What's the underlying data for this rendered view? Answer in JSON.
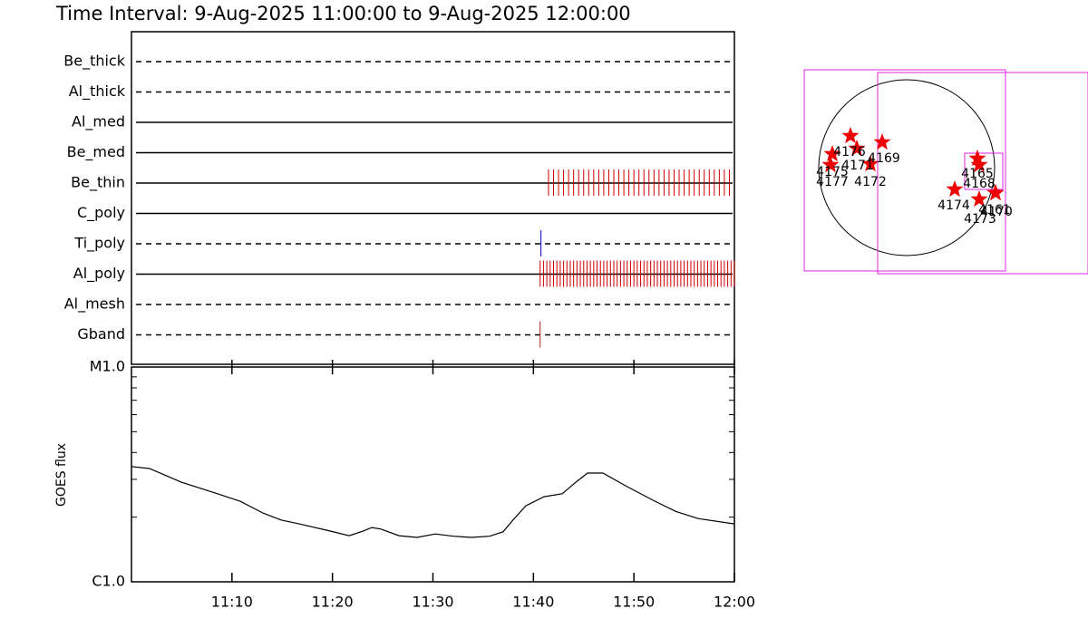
{
  "chart_data": [
    {
      "type": "timeline",
      "title": "Time Interval:  9-Aug-2025 11:00:00 to  9-Aug-2025 12:00:00",
      "xlim": [
        "11:00",
        "12:00"
      ],
      "rows": [
        {
          "name": "Be_thick",
          "dashed": true,
          "events": []
        },
        {
          "name": "Al_thick",
          "dashed": true,
          "events": []
        },
        {
          "name": "Al_med",
          "dashed": false,
          "events": []
        },
        {
          "name": "Be_med",
          "dashed": false,
          "events": []
        },
        {
          "name": "Be_thin",
          "dashed": false,
          "color": "#cc0000",
          "events": [
            "11:41:30",
            "11:42:00",
            "11:42:30",
            "11:43:00",
            "11:43:30",
            "11:44:00",
            "11:44:30",
            "11:45:00",
            "11:45:30",
            "11:46:00",
            "11:46:30",
            "11:47:00",
            "11:47:30",
            "11:48:00",
            "11:48:30",
            "11:49:00",
            "11:49:30",
            "11:50:00",
            "11:50:30",
            "11:51:00",
            "11:51:30",
            "11:52:00",
            "11:52:30",
            "11:53:00",
            "11:53:30",
            "11:54:00",
            "11:54:30",
            "11:55:00",
            "11:55:30",
            "11:56:00",
            "11:56:30",
            "11:57:00",
            "11:57:30",
            "11:58:00",
            "11:58:30",
            "11:59:00",
            "11:59:30"
          ]
        },
        {
          "name": "C_poly",
          "dashed": false,
          "events": []
        },
        {
          "name": "Ti_poly",
          "dashed": true,
          "color": "#0000cc",
          "events": [
            "11:40:45"
          ]
        },
        {
          "name": "Al_poly",
          "dashed": false,
          "color": "#cc0000",
          "events": [
            "11:40:40",
            "11:41:00",
            "11:41:20",
            "11:41:40",
            "11:42:00",
            "11:42:20",
            "11:42:40",
            "11:43:00",
            "11:43:20",
            "11:43:40",
            "11:44:00",
            "11:44:20",
            "11:44:40",
            "11:45:00",
            "11:45:20",
            "11:45:40",
            "11:46:00",
            "11:46:20",
            "11:46:40",
            "11:47:00",
            "11:47:20",
            "11:47:40",
            "11:48:00",
            "11:48:20",
            "11:48:40",
            "11:49:00",
            "11:49:20",
            "11:49:40",
            "11:50:00",
            "11:50:20",
            "11:50:40",
            "11:51:00",
            "11:51:20",
            "11:51:40",
            "11:52:00",
            "11:52:20",
            "11:52:40",
            "11:53:00",
            "11:53:20",
            "11:53:40",
            "11:54:00",
            "11:54:20",
            "11:54:40",
            "11:55:00",
            "11:55:20",
            "11:55:40",
            "11:56:00",
            "11:56:20",
            "11:56:40",
            "11:57:00",
            "11:57:20",
            "11:57:40",
            "11:58:00",
            "11:58:20",
            "11:58:40",
            "11:59:00",
            "11:59:20",
            "11:59:40",
            "12:00:00"
          ]
        },
        {
          "name": "Al_mesh",
          "dashed": true,
          "events": []
        },
        {
          "name": "Gband",
          "dashed": true,
          "color": "#aa2222",
          "events": [
            "11:40:40"
          ]
        }
      ]
    },
    {
      "type": "line",
      "y_label": "GOES flux",
      "log_scale": true,
      "xlim": [
        "11:00",
        "12:00"
      ],
      "xticks": [
        "11:10",
        "11:20",
        "11:30",
        "11:40",
        "11:50",
        "12:00"
      ],
      "ylim": [
        1e-06,
        1e-05
      ],
      "yticks": [
        {
          "value": 1e-06,
          "label": "C1.0"
        },
        {
          "value": 1e-05,
          "label": "M1.0"
        }
      ],
      "yminorticks": [
        2e-06,
        3e-06,
        4e-06,
        5e-06,
        6e-06,
        7e-06,
        8e-06,
        9e-06
      ],
      "color": "#000000",
      "x": [
        "11:00:00",
        "11:01:48",
        "11:04:58",
        "11:08:34",
        "11:10:50",
        "11:13:05",
        "11:14:53",
        "11:16:41",
        "11:19:24",
        "11:21:39",
        "11:23:01",
        "11:23:55",
        "11:24:49",
        "11:26:37",
        "11:28:25",
        "11:30:14",
        "11:32:02",
        "11:33:50",
        "11:35:38",
        "11:36:59",
        "11:37:53",
        "11:39:15",
        "11:41:03",
        "11:42:52",
        "11:44:13",
        "11:45:23",
        "11:46:55",
        "11:49:10",
        "11:51:53",
        "11:54:08",
        "11:56:23",
        "12:00:00"
      ],
      "values": [
        3.44e-06,
        3.37e-06,
        2.91e-06,
        2.57e-06,
        2.37e-06,
        2.09e-06,
        1.94e-06,
        1.86e-06,
        1.74e-06,
        1.64e-06,
        1.72e-06,
        1.79e-06,
        1.76e-06,
        1.64e-06,
        1.61e-06,
        1.67e-06,
        1.63e-06,
        1.61e-06,
        1.63e-06,
        1.71e-06,
        1.92e-06,
        2.26e-06,
        2.49e-06,
        2.57e-06,
        2.91e-06,
        3.21e-06,
        3.21e-06,
        2.8e-06,
        2.4e-06,
        2.13e-06,
        1.97e-06,
        1.86e-06
      ]
    },
    {
      "type": "map",
      "labels": [
        "4176",
        "4171",
        "4169",
        "4175",
        "4177",
        "4172",
        "4165",
        "4168",
        "4174",
        "4161",
        "4170",
        "4173"
      ]
    }
  ]
}
